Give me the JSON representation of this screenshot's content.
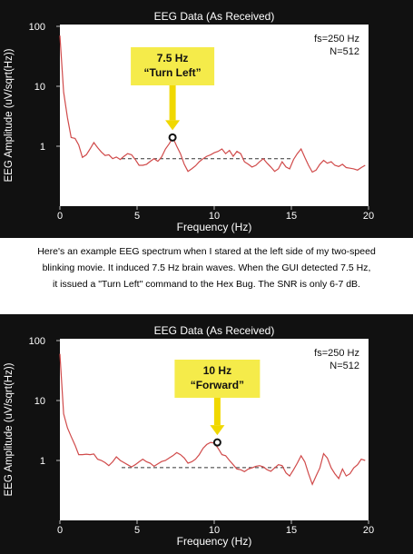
{
  "caption": {
    "line1": "Here's an example EEG spectrum when I stared at the left side of my two-speed",
    "line2": "blinking movie.  It induced 7.5 Hz brain waves.  When the GUI detected 7.5 Hz,",
    "line3": "it issued a \"Turn Left\" command to the Hex Bug.  The SNR is only 6-7 dB."
  },
  "colors": {
    "background": "#111111",
    "plot_area": "#ffffff",
    "trace": "#d04a4a",
    "callout": "#f5eb4a",
    "callout_arrow": "#f0d800",
    "text": "#ffffff",
    "noise_line": "#333333"
  },
  "chart_data": [
    {
      "type": "line",
      "title": "EEG Data (As Received)",
      "xlabel": "Frequency (Hz)",
      "ylabel": "EEG Amplitude (uV/sqrt(Hz))",
      "xlim": [
        0,
        20
      ],
      "ylim": [
        0.1,
        100
      ],
      "yscale": "log",
      "xticks": [
        "0",
        "5",
        "10",
        "15",
        "20"
      ],
      "yticks": [
        "100",
        "10",
        "1"
      ],
      "info_lines": [
        "fs=250 Hz",
        "N=512"
      ],
      "callout": {
        "label1": "7.5 Hz",
        "label2": "“Turn Left”",
        "peak_x": 7.3,
        "peak_y": 1.4
      },
      "noise_floor": {
        "x_start": 4.0,
        "x_end": 15.0,
        "y": 0.62
      },
      "series": [
        {
          "x": [
            0,
            0.24,
            0.49,
            0.73,
            0.98,
            1.22,
            1.46,
            1.71,
            1.95,
            2.2,
            2.44,
            2.69,
            2.93,
            3.17,
            3.42,
            3.66,
            3.91,
            4.15,
            4.39,
            4.64,
            4.88,
            5.13,
            5.37,
            5.62,
            5.86,
            6.1,
            6.35,
            6.59,
            6.84,
            7.08,
            7.32,
            7.57,
            7.81,
            8.06,
            8.3,
            8.54,
            8.79,
            9.03,
            9.28,
            9.52,
            9.77,
            10.01,
            10.25,
            10.5,
            10.74,
            10.99,
            11.23,
            11.47,
            11.72,
            11.96,
            12.21,
            12.45,
            12.7,
            12.94,
            13.18,
            13.43,
            13.67,
            13.92,
            14.16,
            14.4,
            14.65,
            14.89,
            15.14,
            15.38,
            15.63,
            15.87,
            16.11,
            16.36,
            16.6,
            16.85,
            17.09,
            17.33,
            17.58,
            17.82,
            18.07,
            18.31,
            18.55,
            18.8,
            19.04,
            19.29,
            19.53,
            19.78
          ],
          "y": [
            70,
            8,
            3,
            1.4,
            1.35,
            1.05,
            0.65,
            0.72,
            0.9,
            1.15,
            0.95,
            0.8,
            0.7,
            0.72,
            0.62,
            0.66,
            0.6,
            0.68,
            0.75,
            0.72,
            0.6,
            0.48,
            0.48,
            0.5,
            0.56,
            0.62,
            0.56,
            0.66,
            0.9,
            1.1,
            1.4,
            1.0,
            0.75,
            0.5,
            0.38,
            0.42,
            0.47,
            0.55,
            0.62,
            0.68,
            0.72,
            0.78,
            0.82,
            0.9,
            0.75,
            0.85,
            0.68,
            0.82,
            0.75,
            0.55,
            0.5,
            0.45,
            0.48,
            0.55,
            0.62,
            0.52,
            0.45,
            0.38,
            0.42,
            0.55,
            0.45,
            0.42,
            0.6,
            0.75,
            0.9,
            0.65,
            0.48,
            0.37,
            0.4,
            0.5,
            0.58,
            0.52,
            0.55,
            0.48,
            0.46,
            0.5,
            0.44,
            0.43,
            0.42,
            0.4,
            0.44,
            0.48
          ]
        }
      ]
    },
    {
      "type": "line",
      "title": "EEG Data (As Received)",
      "xlabel": "Frequency (Hz)",
      "ylabel": "EEG Amplitude (uV/sqrt(Hz))",
      "xlim": [
        0,
        20
      ],
      "ylim": [
        0.1,
        100
      ],
      "yscale": "log",
      "xticks": [
        "0",
        "5",
        "10",
        "15",
        "20"
      ],
      "yticks": [
        "100",
        "10",
        "1"
      ],
      "info_lines": [
        "fs=250 Hz",
        "N=512"
      ],
      "callout": {
        "label1": "10 Hz",
        "label2": "“Forward”",
        "peak_x": 10.2,
        "peak_y": 2.0
      },
      "noise_floor": {
        "x_start": 4.0,
        "x_end": 15.0,
        "y": 0.76
      },
      "series": [
        {
          "x": [
            0,
            0.24,
            0.49,
            0.73,
            0.98,
            1.22,
            1.46,
            1.71,
            1.95,
            2.2,
            2.44,
            2.69,
            2.93,
            3.17,
            3.42,
            3.66,
            3.91,
            4.15,
            4.39,
            4.64,
            4.88,
            5.13,
            5.37,
            5.62,
            5.86,
            6.1,
            6.35,
            6.59,
            6.84,
            7.08,
            7.32,
            7.57,
            7.81,
            8.06,
            8.3,
            8.54,
            8.79,
            9.03,
            9.28,
            9.52,
            9.77,
            10.01,
            10.25,
            10.5,
            10.74,
            10.99,
            11.23,
            11.47,
            11.72,
            11.96,
            12.21,
            12.45,
            12.7,
            12.94,
            13.18,
            13.43,
            13.67,
            13.92,
            14.16,
            14.4,
            14.65,
            14.89,
            15.14,
            15.38,
            15.63,
            15.87,
            16.11,
            16.36,
            16.6,
            16.85,
            17.09,
            17.33,
            17.58,
            17.82,
            18.07,
            18.31,
            18.55,
            18.8,
            19.04,
            19.29,
            19.53,
            19.78
          ],
          "y": [
            60,
            6,
            3.5,
            2.5,
            1.8,
            1.25,
            1.25,
            1.27,
            1.25,
            1.28,
            1.05,
            1.0,
            0.92,
            0.82,
            0.95,
            1.15,
            1.0,
            0.92,
            0.85,
            0.78,
            0.85,
            0.95,
            1.05,
            0.95,
            0.9,
            0.8,
            0.88,
            0.96,
            1.0,
            1.1,
            1.2,
            1.35,
            1.25,
            1.1,
            0.9,
            0.95,
            1.05,
            1.25,
            1.6,
            1.85,
            2.0,
            1.95,
            1.6,
            1.25,
            1.2,
            1.0,
            0.85,
            0.72,
            0.7,
            0.65,
            0.72,
            0.75,
            0.8,
            0.82,
            0.78,
            0.7,
            0.66,
            0.75,
            0.85,
            0.82,
            0.62,
            0.55,
            0.7,
            0.9,
            1.2,
            0.95,
            0.6,
            0.4,
            0.55,
            0.75,
            1.3,
            1.1,
            0.75,
            0.6,
            0.5,
            0.72,
            0.55,
            0.6,
            0.75,
            0.85,
            1.05,
            1.0
          ]
        }
      ]
    }
  ]
}
